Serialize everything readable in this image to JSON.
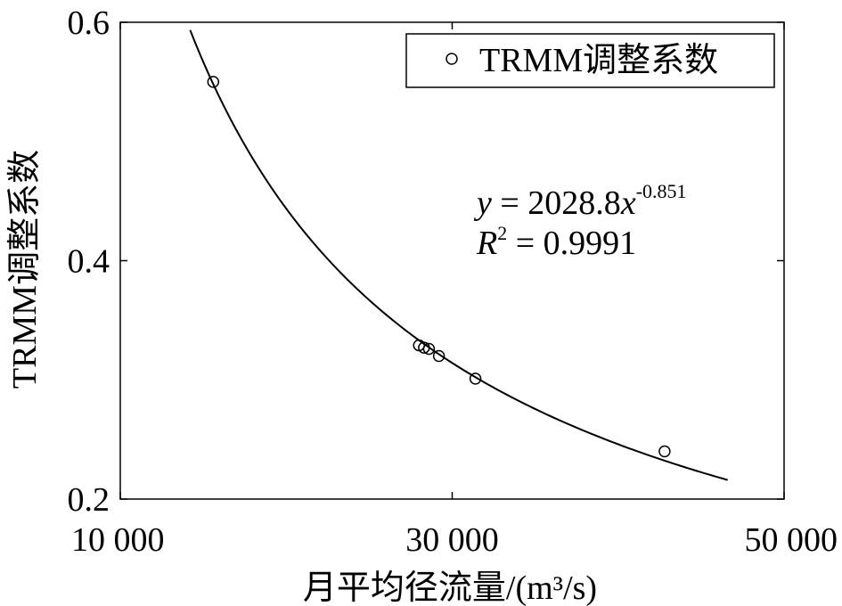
{
  "chart_data": {
    "type": "scatter",
    "xlabel": "月平均径流量/(m³/s)",
    "ylabel": "TRMM调整系数",
    "xlim": [
      10000,
      50000
    ],
    "ylim": [
      0.2,
      0.6
    ],
    "x_ticks": [
      10000,
      30000,
      50000
    ],
    "x_tick_labels": [
      "10 000",
      "30 000",
      "50 000"
    ],
    "y_ticks": [
      0.2,
      0.4,
      0.6
    ],
    "y_tick_labels": [
      "0.2",
      "0.4",
      "0.6"
    ],
    "grid": false,
    "legend": {
      "position": "top-right",
      "entries": [
        "TRMM调整系数"
      ]
    },
    "series": [
      {
        "name": "TRMM调整系数",
        "marker": "open-circle",
        "x": [
          15600,
          28000,
          28300,
          28600,
          29200,
          31400,
          42800
        ],
        "y": [
          0.55,
          0.329,
          0.327,
          0.326,
          0.32,
          0.301,
          0.24
        ]
      }
    ],
    "fit": {
      "type": "power",
      "a": 2028.8,
      "b": -0.851,
      "x_range": [
        13500,
        46600
      ],
      "equation": {
        "y": "y",
        "equals_coef": " = 2028.8",
        "x": "x",
        "exp": "-0.851"
      },
      "r2": {
        "R": "R",
        "sup": "2",
        "value": " = 0.9991"
      }
    }
  }
}
